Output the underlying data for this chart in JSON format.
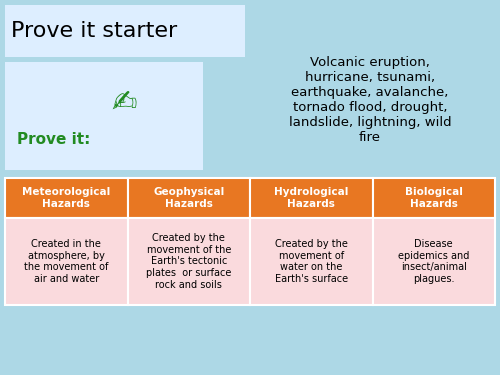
{
  "background_color": "#add8e6",
  "title": "Prove it starter",
  "title_fontsize": 16,
  "title_bg": "#ddeeff",
  "hazard_text": "Volcanic eruption,\nhurricane, tsunami,\nearthquake, avalanche,\ntornado flood, drought,\nlandslide, lightning, wild\nfire",
  "hazard_fontsize": 9.5,
  "prove_it_text": "Prove it:",
  "prove_it_color": "#228B22",
  "prove_it_fontsize": 11,
  "prove_box_bg": "#ddeeff",
  "header_bg": "#E87722",
  "header_text_color": "#FFFFFF",
  "header_fontsize": 7.5,
  "row_bg": "#FADADD",
  "row_fontsize": 7.0,
  "headers": [
    "Meteorological\nHazards",
    "Geophysical\nHazards",
    "Hydrological\nHazards",
    "Biological\nHazards"
  ],
  "rows": [
    "Created in the\natmosphere, by\nthe movement of\nair and water",
    "Created by the\nmovement of the\nEarth's tectonic\nplates  or surface\nrock and soils",
    "Created by the\nmovement of\nwater on the\nEarth's surface",
    "Disease\nepidemics and\ninsect/animal\nplagues."
  ],
  "fig_width": 5.0,
  "fig_height": 3.75,
  "dpi": 100
}
